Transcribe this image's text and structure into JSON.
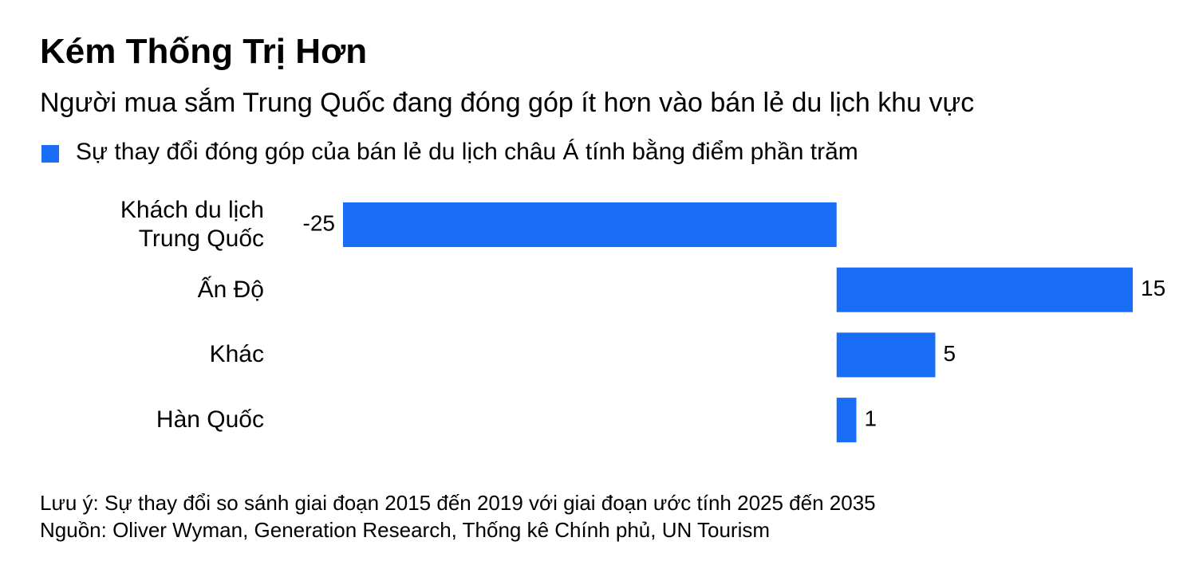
{
  "chart_data": {
    "type": "hbar",
    "title": "Kém Thống Trị Hơn",
    "subtitle": "Người mua sắm Trung Quốc đang đóng góp ít hơn vào bán lẻ du lịch khu vực",
    "categories": [
      "Khách du lịch Trung Quốc",
      "Ấn Độ",
      "Khác",
      "Hàn Quốc"
    ],
    "series": [
      {
        "name": "Sự thay đổi đóng góp của bán lẻ du lịch châu Á tính bằng điểm phần trăm",
        "color": "#1a6ef5",
        "values": [
          -25,
          15,
          5,
          1
        ]
      }
    ],
    "note": "Lưu ý: Sự thay đổi so sánh giai đoạn 2015 đến 2019 với giai đoạn ước tính 2025 đến 2035",
    "source": "Nguồn: Oliver Wyman, Generation Research, Thống kê Chính phủ, UN Tourism"
  }
}
